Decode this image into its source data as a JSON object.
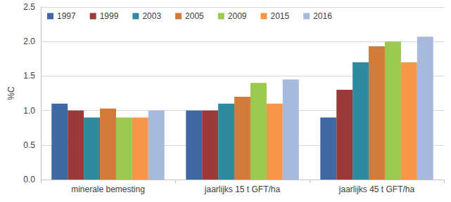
{
  "chart_data": {
    "type": "bar",
    "y_label": "%C",
    "categories": [
      "minerale bemesting",
      "jaarlijks 15 t GFT/ha",
      "jaarlijks 45 t GFT/ha"
    ],
    "series": [
      {
        "name": "1997",
        "color": "#4068a5",
        "values": [
          1.1,
          1.0,
          0.9
        ]
      },
      {
        "name": "1999",
        "color": "#9b3b38",
        "values": [
          1.0,
          1.0,
          1.3
        ]
      },
      {
        "name": "2003",
        "color": "#2f8aa0",
        "values": [
          0.9,
          1.1,
          1.7
        ]
      },
      {
        "name": "2005",
        "color": "#d07a3c",
        "values": [
          1.03,
          1.2,
          1.93
        ]
      },
      {
        "name": "2009",
        "color": "#9bc84e",
        "values": [
          0.9,
          1.4,
          2.0
        ]
      },
      {
        "name": "2015",
        "color": "#f79646",
        "values": [
          0.9,
          1.1,
          1.7
        ]
      },
      {
        "name": "2016",
        "color": "#a8b9de",
        "values": [
          1.0,
          1.45,
          2.07
        ]
      }
    ],
    "ylim": [
      0,
      2.5
    ],
    "yticks": [
      {
        "value": 0,
        "label": "0.0"
      },
      {
        "value": 0.5,
        "label": "0.5"
      },
      {
        "value": 1,
        "label": "1.0"
      },
      {
        "value": 1.5,
        "label": "1.5"
      },
      {
        "value": 2,
        "label": "2.0"
      },
      {
        "value": 2.5,
        "label": "2.5"
      }
    ],
    "grid": true,
    "legend": "top-left"
  }
}
